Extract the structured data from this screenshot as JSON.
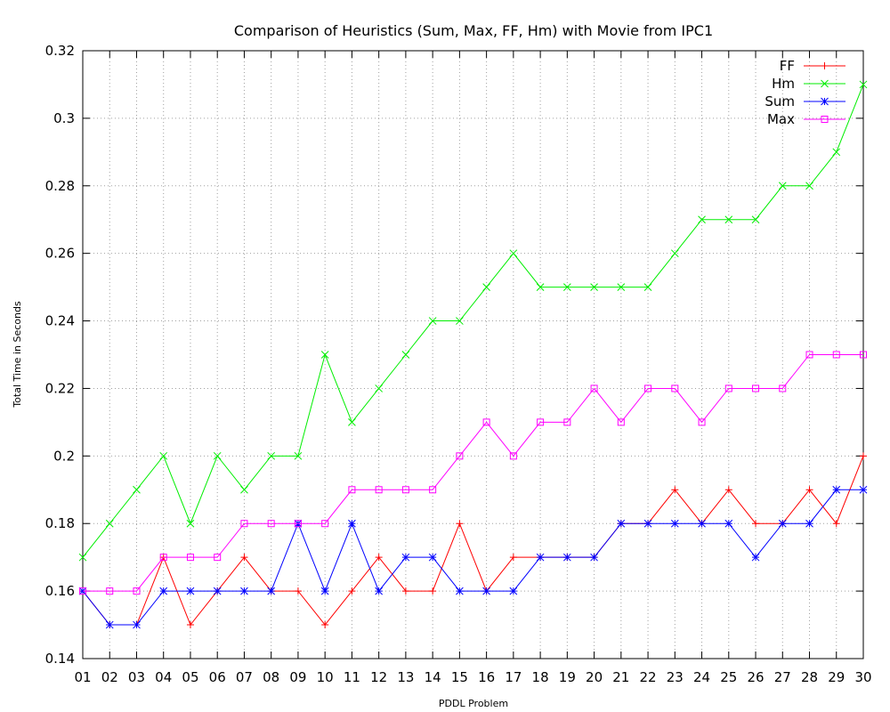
{
  "chart_data": {
    "type": "line",
    "title": "Comparison of Heuristics (Sum, Max, FF, Hm) with Movie from IPC1",
    "xlabel": "PDDL Problem",
    "ylabel": "Total Time in Seconds",
    "categories": [
      "01",
      "02",
      "03",
      "04",
      "05",
      "06",
      "07",
      "08",
      "09",
      "10",
      "11",
      "12",
      "13",
      "14",
      "15",
      "16",
      "17",
      "18",
      "19",
      "20",
      "21",
      "22",
      "23",
      "24",
      "25",
      "26",
      "27",
      "28",
      "29",
      "30"
    ],
    "ylim": [
      0.14,
      0.32
    ],
    "yticks": [
      "0.14",
      "0.16",
      "0.18",
      "0.2",
      "0.22",
      "0.24",
      "0.26",
      "0.28",
      "0.3",
      "0.32"
    ],
    "grid": true,
    "legend_position": "top-right",
    "series": [
      {
        "name": "FF",
        "color": "#ff0000",
        "marker": "plus",
        "values": [
          0.16,
          0.15,
          0.15,
          0.17,
          0.15,
          0.16,
          0.17,
          0.16,
          0.16,
          0.15,
          0.16,
          0.17,
          0.16,
          0.16,
          0.18,
          0.16,
          0.17,
          0.17,
          0.17,
          0.17,
          0.18,
          0.18,
          0.19,
          0.18,
          0.19,
          0.18,
          0.18,
          0.19,
          0.18,
          0.2
        ]
      },
      {
        "name": "Hm",
        "color": "#00ee00",
        "marker": "cross",
        "values": [
          0.17,
          0.18,
          0.19,
          0.2,
          0.18,
          0.2,
          0.19,
          0.2,
          0.2,
          0.23,
          0.21,
          0.22,
          0.23,
          0.24,
          0.24,
          0.25,
          0.26,
          0.25,
          0.25,
          0.25,
          0.25,
          0.25,
          0.26,
          0.27,
          0.27,
          0.27,
          0.28,
          0.28,
          0.29,
          0.31
        ]
      },
      {
        "name": "Sum",
        "color": "#0000ff",
        "marker": "star",
        "values": [
          0.16,
          0.15,
          0.15,
          0.16,
          0.16,
          0.16,
          0.16,
          0.16,
          0.18,
          0.16,
          0.18,
          0.16,
          0.17,
          0.17,
          0.16,
          0.16,
          0.16,
          0.17,
          0.17,
          0.17,
          0.18,
          0.18,
          0.18,
          0.18,
          0.18,
          0.17,
          0.18,
          0.18,
          0.19,
          0.19
        ]
      },
      {
        "name": "Max",
        "color": "#ff00ff",
        "marker": "square",
        "values": [
          0.16,
          0.16,
          0.16,
          0.17,
          0.17,
          0.17,
          0.18,
          0.18,
          0.18,
          0.18,
          0.19,
          0.19,
          0.19,
          0.19,
          0.2,
          0.21,
          0.2,
          0.21,
          0.21,
          0.22,
          0.21,
          0.22,
          0.22,
          0.21,
          0.22,
          0.22,
          0.22,
          0.23,
          0.23,
          0.23
        ]
      }
    ]
  }
}
